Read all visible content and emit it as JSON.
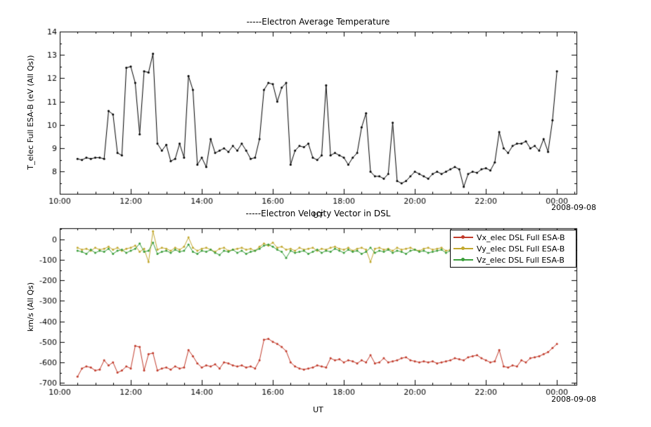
{
  "page": {
    "background": "#ffffff"
  },
  "chart_data": [
    {
      "type": "line",
      "title": "-----Electron Average Temperature",
      "ylabel": "T_elec Full ESA-B (eV (All Qs))",
      "xlabel": "UT",
      "date": "2008-09-08",
      "xlim": [
        10,
        24.55
      ],
      "ylim": [
        7.05,
        14
      ],
      "xticks": [
        10,
        12,
        14,
        16,
        18,
        20,
        22,
        24
      ],
      "xtick_labels": [
        "10:00",
        "12:00",
        "14:00",
        "16:00",
        "18:00",
        "20:00",
        "22:00",
        "00:00"
      ],
      "yticks": [
        8,
        9,
        10,
        11,
        12,
        13,
        14
      ],
      "ytick_labels": [
        "8",
        "9",
        "10",
        "11",
        "12",
        "13",
        "14"
      ],
      "x_minor_step": 0.5,
      "y_minor_step": 0.5,
      "grid": false,
      "legend_position": null,
      "t_start": 10.5,
      "t_step": 0.125,
      "series": [
        {
          "name": "T_elec Full ESA-B",
          "color": "#000000",
          "values": [
            8.55,
            8.5,
            8.6,
            8.55,
            8.6,
            8.6,
            8.55,
            10.6,
            10.45,
            8.8,
            8.7,
            12.45,
            12.5,
            11.8,
            9.6,
            12.3,
            12.25,
            13.05,
            9.2,
            8.9,
            9.15,
            8.45,
            8.55,
            9.2,
            8.6,
            12.1,
            11.5,
            8.3,
            8.6,
            8.2,
            9.4,
            8.8,
            8.9,
            9.0,
            8.85,
            9.1,
            8.9,
            9.2,
            8.9,
            8.55,
            8.6,
            9.4,
            11.5,
            11.8,
            11.75,
            11.0,
            11.6,
            11.8,
            8.3,
            8.9,
            9.1,
            9.05,
            9.2,
            8.6,
            8.5,
            8.7,
            11.7,
            8.7,
            8.8,
            8.7,
            8.6,
            8.3,
            8.6,
            8.8,
            9.9,
            10.5,
            8.0,
            7.8,
            7.8,
            7.7,
            7.9,
            10.1,
            7.6,
            7.5,
            7.6,
            7.8,
            8.0,
            7.9,
            7.8,
            7.7,
            7.9,
            8.0,
            7.9,
            8.0,
            8.1,
            8.2,
            8.1,
            7.35,
            7.9,
            8.0,
            7.95,
            8.1,
            8.15,
            8.05,
            8.4,
            9.7,
            9.0,
            8.8,
            9.1,
            9.2,
            9.2,
            9.3,
            9.0,
            9.1,
            8.9,
            9.4,
            8.85,
            10.2,
            12.3
          ]
        }
      ]
    },
    {
      "type": "line",
      "title": "-----Electron Velocity Vector in DSL",
      "ylabel": "km/s (All Qs)",
      "xlabel": "UT",
      "date": "2008-09-08",
      "xlim": [
        10,
        24.55
      ],
      "ylim": [
        -710,
        55
      ],
      "xticks": [
        10,
        12,
        14,
        16,
        18,
        20,
        22,
        24
      ],
      "xtick_labels": [
        "10:00",
        "12:00",
        "14:00",
        "16:00",
        "18:00",
        "20:00",
        "22:00",
        "00:00"
      ],
      "yticks": [
        0,
        -100,
        -200,
        -300,
        -400,
        -500,
        -600,
        -700
      ],
      "ytick_labels": [
        "0",
        "-100",
        "-200",
        "-300",
        "-400",
        "-500",
        "-600",
        "-700"
      ],
      "x_minor_step": 0.5,
      "y_minor_step": 50,
      "grid": false,
      "legend_position": "top-right",
      "t_start": 10.5,
      "t_step": 0.125,
      "series": [
        {
          "name": "Vx_elec DSL Full ESA-B",
          "color": "#c23b2b",
          "values": [
            -670,
            -630,
            -620,
            -625,
            -640,
            -635,
            -590,
            -615,
            -600,
            -650,
            -640,
            -620,
            -630,
            -520,
            -525,
            -640,
            -560,
            -555,
            -640,
            -630,
            -625,
            -635,
            -620,
            -630,
            -625,
            -540,
            -570,
            -605,
            -625,
            -615,
            -620,
            -610,
            -630,
            -600,
            -605,
            -615,
            -620,
            -615,
            -625,
            -620,
            -630,
            -590,
            -490,
            -485,
            -500,
            -510,
            -525,
            -545,
            -600,
            -620,
            -630,
            -635,
            -630,
            -625,
            -615,
            -620,
            -625,
            -580,
            -590,
            -585,
            -600,
            -590,
            -595,
            -605,
            -590,
            -600,
            -565,
            -605,
            -600,
            -580,
            -600,
            -595,
            -590,
            -580,
            -575,
            -590,
            -595,
            -600,
            -595,
            -600,
            -595,
            -605,
            -600,
            -595,
            -590,
            -580,
            -585,
            -590,
            -575,
            -570,
            -565,
            -580,
            -590,
            -600,
            -595,
            -540,
            -620,
            -625,
            -615,
            -620,
            -590,
            -600,
            -580,
            -575,
            -570,
            -560,
            -550,
            -530,
            -510
          ]
        },
        {
          "name": "Vy_elec DSL Full ESA-B",
          "color": "#c2a82e",
          "values": [
            -40,
            -50,
            -45,
            -55,
            -40,
            -50,
            -45,
            -35,
            -50,
            -40,
            -55,
            -45,
            -40,
            -30,
            -60,
            -45,
            -110,
            40,
            -50,
            -40,
            -45,
            -55,
            -40,
            -50,
            -35,
            10,
            -40,
            -55,
            -45,
            -40,
            -50,
            -60,
            -45,
            -40,
            -55,
            -50,
            -45,
            -40,
            -50,
            -45,
            -55,
            -35,
            -20,
            -30,
            -15,
            -40,
            -35,
            -50,
            -45,
            -55,
            -40,
            -50,
            -45,
            -40,
            -55,
            -45,
            -50,
            -40,
            -35,
            -45,
            -50,
            -40,
            -55,
            -45,
            -40,
            -50,
            -110,
            -45,
            -40,
            -50,
            -45,
            -55,
            -40,
            -50,
            -45,
            -40,
            -50,
            -55,
            -45,
            -40,
            -50,
            -45,
            -40,
            -55,
            -50,
            -45,
            -40,
            -50,
            -45,
            -55,
            -40,
            -45,
            -50,
            -40,
            -55,
            -45,
            -40,
            -50,
            -45,
            -40,
            -55,
            -45,
            -50,
            -40,
            -45,
            -35,
            -40,
            -30,
            -35
          ]
        },
        {
          "name": "Vz_elec DSL Full ESA-B",
          "color": "#3a9e3a",
          "values": [
            -55,
            -60,
            -70,
            -50,
            -65,
            -55,
            -60,
            -45,
            -70,
            -55,
            -50,
            -65,
            -55,
            -45,
            -20,
            -60,
            -55,
            -15,
            -70,
            -60,
            -55,
            -65,
            -50,
            -60,
            -55,
            -25,
            -60,
            -70,
            -55,
            -60,
            -50,
            -65,
            -75,
            -55,
            -60,
            -50,
            -65,
            -55,
            -70,
            -60,
            -55,
            -45,
            -30,
            -25,
            -35,
            -50,
            -60,
            -90,
            -55,
            -65,
            -60,
            -55,
            -70,
            -60,
            -50,
            -65,
            -55,
            -60,
            -45,
            -55,
            -65,
            -50,
            -60,
            -55,
            -70,
            -60,
            -40,
            -65,
            -55,
            -60,
            -50,
            -65,
            -55,
            -60,
            -70,
            -55,
            -50,
            -60,
            -55,
            -65,
            -60,
            -55,
            -50,
            -65,
            -55,
            -60,
            -50,
            -55,
            -65,
            -60,
            -55,
            -50,
            -60,
            -55,
            -65,
            -55,
            -60,
            -50,
            -55,
            -60,
            -50,
            -55,
            -45,
            -60,
            -55,
            -50,
            -55,
            -45,
            -50
          ]
        }
      ]
    }
  ]
}
